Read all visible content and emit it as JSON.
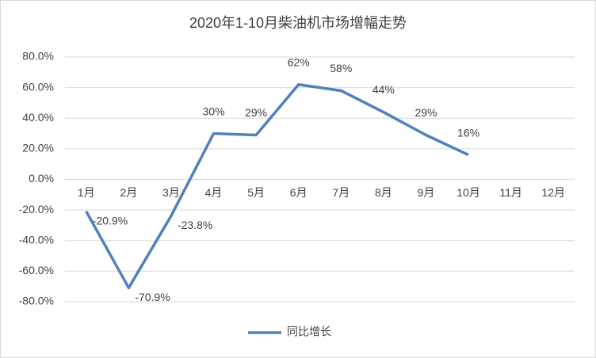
{
  "chart_data": {
    "type": "line",
    "title": "2020年1-10月柴油机市场增幅走势",
    "categories": [
      "1月",
      "2月",
      "3月",
      "4月",
      "5月",
      "6月",
      "7月",
      "8月",
      "9月",
      "10月",
      "11月",
      "12月"
    ],
    "series": [
      {
        "name": "同比增长",
        "color": "#4f81bd",
        "values": [
          -20.9,
          -70.9,
          -23.8,
          30,
          29,
          62,
          58,
          44,
          29,
          16,
          null,
          null
        ],
        "value_labels": [
          "-20.9%",
          "-70.9%",
          "-23.8%",
          "30%",
          "29%",
          "62%",
          "58%",
          "44%",
          "29%",
          "16%",
          null,
          null
        ]
      }
    ],
    "ylim": [
      -80,
      80
    ],
    "yticks": [
      {
        "value": -80,
        "label": "-80.0%"
      },
      {
        "value": -60,
        "label": "-60.0%"
      },
      {
        "value": -40,
        "label": "-40.0%"
      },
      {
        "value": -20,
        "label": "-20.0%"
      },
      {
        "value": 0,
        "label": "0.0%"
      },
      {
        "value": 20,
        "label": "20.0%"
      },
      {
        "value": 40,
        "label": "40.0%"
      },
      {
        "value": 60,
        "label": "60.0%"
      },
      {
        "value": 80,
        "label": "80.0%"
      }
    ],
    "grid": true,
    "legend": "bottom"
  }
}
